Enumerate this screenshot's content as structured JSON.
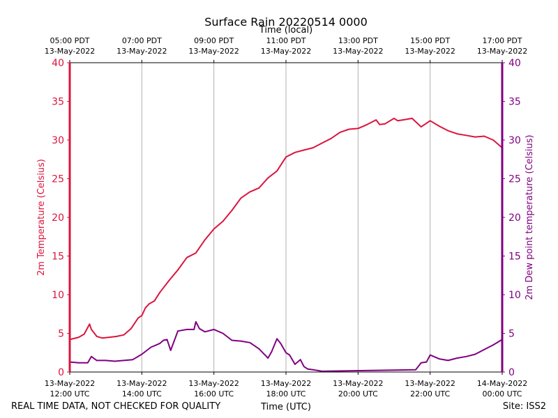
{
  "chart_data": {
    "type": "line",
    "title": "Surface Rain 20220514 0000",
    "xlabel_bottom": "Time (UTC)",
    "xlabel_top": "Time (local)",
    "ylabel_left": "2m Temperature (Celsius)",
    "ylabel_right": "2m Dew point temperature (Celsius)",
    "xlim_hours_utc": [
      12,
      24
    ],
    "ylim": [
      0,
      40
    ],
    "yticks": [
      0,
      5,
      10,
      15,
      20,
      25,
      30,
      35,
      40
    ],
    "xticks_utc": [
      {
        "hour": 12,
        "line1": "13-May-2022",
        "line2": "12:00 UTC"
      },
      {
        "hour": 14,
        "line1": "13-May-2022",
        "line2": "14:00 UTC"
      },
      {
        "hour": 16,
        "line1": "13-May-2022",
        "line2": "16:00 UTC"
      },
      {
        "hour": 18,
        "line1": "13-May-2022",
        "line2": "18:00 UTC"
      },
      {
        "hour": 20,
        "line1": "13-May-2022",
        "line2": "20:00 UTC"
      },
      {
        "hour": 22,
        "line1": "13-May-2022",
        "line2": "22:00 UTC"
      },
      {
        "hour": 24,
        "line1": "14-May-2022",
        "line2": "00:00 UTC"
      }
    ],
    "xticks_local": [
      {
        "hour": 12,
        "line1": "05:00 PDT",
        "line2": "13-May-2022"
      },
      {
        "hour": 14,
        "line1": "07:00 PDT",
        "line2": "13-May-2022"
      },
      {
        "hour": 16,
        "line1": "09:00 PDT",
        "line2": "13-May-2022"
      },
      {
        "hour": 18,
        "line1": "11:00 PDT",
        "line2": "13-May-2022"
      },
      {
        "hour": 20,
        "line1": "13:00 PDT",
        "line2": "13-May-2022"
      },
      {
        "hour": 22,
        "line1": "15:00 PDT",
        "line2": "13-May-2022"
      },
      {
        "hour": 24,
        "line1": "17:00 PDT",
        "line2": "13-May-2022"
      }
    ],
    "grid": "vertical",
    "series": [
      {
        "name": "2m Temperature",
        "axis": "left",
        "color": "#dc143c",
        "x_hours_utc": [
          12.0,
          12.25,
          12.4,
          12.55,
          12.6,
          12.75,
          12.9,
          13.1,
          13.3,
          13.5,
          13.7,
          13.9,
          14.0,
          14.1,
          14.2,
          14.35,
          14.5,
          14.75,
          15.0,
          15.25,
          15.5,
          15.75,
          16.0,
          16.25,
          16.5,
          16.75,
          17.0,
          17.25,
          17.5,
          17.75,
          18.0,
          18.25,
          18.5,
          18.75,
          19.0,
          19.25,
          19.5,
          19.75,
          20.0,
          20.25,
          20.5,
          20.6,
          20.75,
          21.0,
          21.1,
          21.25,
          21.5,
          21.75,
          22.0,
          22.25,
          22.5,
          22.75,
          23.0,
          23.25,
          23.5,
          23.75,
          24.0
        ],
        "y": [
          4.2,
          4.5,
          4.9,
          6.2,
          5.5,
          4.6,
          4.4,
          4.5,
          4.6,
          4.8,
          5.6,
          7.0,
          7.3,
          8.3,
          8.8,
          9.2,
          10.3,
          11.8,
          13.2,
          14.8,
          15.4,
          17.1,
          18.5,
          19.5,
          20.9,
          22.5,
          23.3,
          23.8,
          25.1,
          26.0,
          27.8,
          28.4,
          28.7,
          29.0,
          29.6,
          30.2,
          31.0,
          31.4,
          31.5,
          32.0,
          32.6,
          32.0,
          32.1,
          32.8,
          32.5,
          32.6,
          32.8,
          31.7,
          32.5,
          31.8,
          31.2,
          30.8,
          30.6,
          30.4,
          30.5,
          30.0,
          29.0
        ]
      },
      {
        "name": "2m Dew point temperature",
        "axis": "right",
        "color": "#800080",
        "x_hours_utc": [
          12.0,
          12.25,
          12.5,
          12.6,
          12.75,
          13.0,
          13.25,
          13.5,
          13.75,
          14.0,
          14.25,
          14.5,
          14.6,
          14.7,
          14.8,
          15.0,
          15.25,
          15.45,
          15.5,
          15.6,
          15.75,
          16.0,
          16.25,
          16.5,
          16.75,
          17.0,
          17.25,
          17.5,
          17.6,
          17.75,
          17.85,
          18.0,
          18.1,
          18.25,
          18.4,
          18.5,
          18.6,
          18.75,
          19.0,
          21.6,
          21.75,
          21.9,
          22.0,
          22.25,
          22.5,
          22.75,
          23.0,
          23.25,
          23.5,
          23.75,
          24.0
        ],
        "y": [
          1.3,
          1.2,
          1.2,
          2.0,
          1.5,
          1.5,
          1.4,
          1.5,
          1.6,
          2.3,
          3.2,
          3.7,
          4.1,
          4.2,
          2.8,
          5.3,
          5.5,
          5.5,
          6.5,
          5.6,
          5.2,
          5.5,
          5.0,
          4.1,
          4.0,
          3.8,
          3.0,
          1.8,
          2.6,
          4.3,
          3.7,
          2.5,
          2.2,
          1.0,
          1.6,
          0.7,
          0.4,
          0.3,
          0.1,
          0.3,
          1.2,
          1.3,
          2.2,
          1.7,
          1.5,
          1.8,
          2.0,
          2.3,
          2.9,
          3.5,
          4.2
        ]
      }
    ]
  },
  "footer": {
    "disclaimer": "REAL TIME DATA, NOT CHECKED FOR QUALITY",
    "site": "Site: ISS2"
  }
}
